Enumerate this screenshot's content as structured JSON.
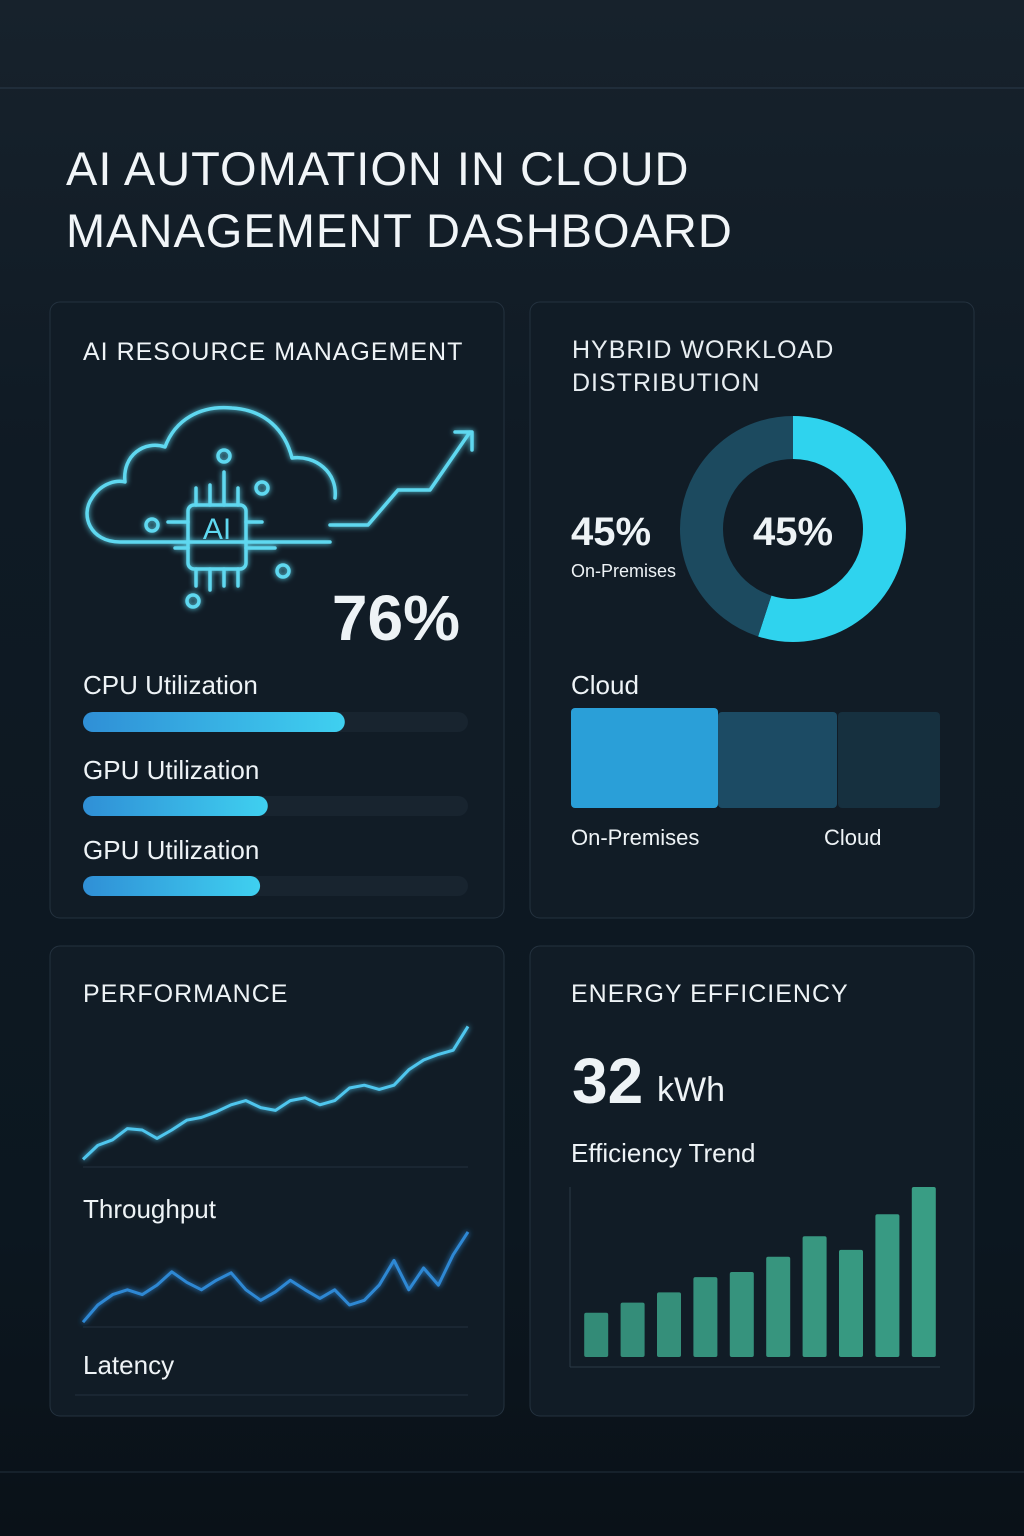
{
  "title": "AI AUTOMATION IN CLOUD MANAGEMENT DASHBOARD",
  "chart_data": [
    {
      "type": "progress",
      "title": "AI RESOURCE MANAGEMENT",
      "headline": "76%",
      "categories": [
        "CPU Utilization",
        "GPU Utilization",
        "GPU Utilization"
      ],
      "values": [
        68,
        48,
        46
      ],
      "xlim": [
        0,
        100
      ],
      "color": "#3bb8ea"
    },
    {
      "type": "donut",
      "title": "HYBRID WORKLOAD DISTRIBUTION",
      "categories": [
        "Cloud",
        "On-Premises"
      ],
      "values": [
        55,
        45
      ],
      "value_labels": [
        null,
        "45%"
      ],
      "colors": [
        "#2fd3ee",
        "#1c4a5f"
      ]
    },
    {
      "type": "column",
      "categories": [
        "On-Premises",
        null,
        "Cloud"
      ],
      "values": [
        100,
        96,
        96
      ],
      "ylim": [
        0,
        100
      ],
      "colors": [
        "#2a9fd8",
        "#1c4b64",
        "#16303f"
      ]
    },
    {
      "type": "line",
      "title": "PERFORMANCE",
      "ylim": [
        0,
        100
      ],
      "series": [
        {
          "name": "Throughput",
          "color": "#4fc6ee",
          "values": [
            4,
            14,
            18,
            26,
            25,
            19,
            25,
            32,
            34,
            38,
            43,
            46,
            41,
            39,
            46,
            48,
            43,
            46,
            55,
            57,
            54,
            57,
            68,
            75,
            79,
            82,
            99
          ]
        },
        {
          "name": "Latency",
          "color": "#2f88d4",
          "values": [
            3,
            21,
            32,
            37,
            32,
            42,
            56,
            45,
            37,
            47,
            55,
            37,
            26,
            35,
            47,
            37,
            28,
            37,
            21,
            26,
            42,
            68,
            37,
            60,
            42,
            74,
            98
          ]
        }
      ]
    },
    {
      "type": "bar",
      "title": "ENERGY EFFICIENCY",
      "headline": 32,
      "unit": "kWh",
      "subtitle": "Efficiency Trend",
      "categories": [
        null,
        null,
        null,
        null,
        null,
        null,
        null,
        null,
        null,
        null
      ],
      "values": [
        26,
        32,
        38,
        47,
        50,
        59,
        71,
        63,
        84,
        100
      ],
      "ylim": [
        0,
        100
      ],
      "color": "#3a9f86"
    }
  ]
}
